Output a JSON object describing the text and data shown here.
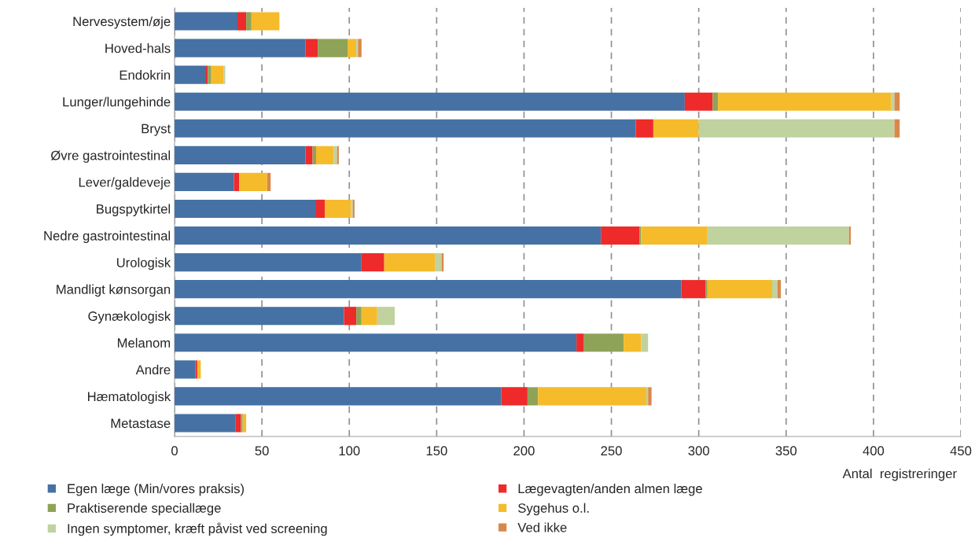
{
  "chart_data": {
    "type": "bar",
    "orientation": "horizontal",
    "stacked": true,
    "categories": [
      "Nervesystem/øje",
      "Hoved-hals",
      "Endokrin",
      "Lunger/lungehinde",
      "Bryst",
      "Øvre gastrointestinal",
      "Lever/galdeveje",
      "Bugspytkirtel",
      "Nedre gastrointestinal",
      "Urologisk",
      "Mandligt kønsorgan",
      "Gynækologisk",
      "Melanom",
      "Andre",
      "Hæmatologisk",
      "Metastase"
    ],
    "series": [
      {
        "name": "Egen læge (Min/vores praksis)",
        "color": "#4671a5",
        "values": [
          36,
          75,
          18,
          292,
          264,
          75,
          34,
          81,
          244,
          107,
          290,
          97,
          230,
          12,
          187,
          35
        ]
      },
      {
        "name": "Lægevagten/anden almen læge",
        "color": "#ee2a2a",
        "values": [
          5,
          7,
          1,
          16,
          10,
          4,
          3,
          5,
          22,
          13,
          14,
          7,
          4,
          1,
          15,
          3
        ]
      },
      {
        "name": "Praktiserende speciallæge",
        "color": "#8fa358",
        "values": [
          3,
          17,
          2,
          3,
          0,
          2,
          0,
          0,
          1,
          0,
          1,
          3,
          23,
          0,
          6,
          1
        ]
      },
      {
        "name": "Sygehus o.l.",
        "color": "#f5bb2b",
        "values": [
          16,
          5,
          7,
          99,
          26,
          10,
          16,
          15,
          38,
          29,
          37,
          9,
          10,
          2,
          62,
          2
        ]
      },
      {
        "name": "Ingen symptomer, kræft påvist ved screening",
        "color": "#c0d29e",
        "values": [
          0,
          1,
          1,
          2,
          112,
          2,
          0,
          1,
          81,
          4,
          3,
          10,
          4,
          0,
          1,
          0
        ]
      },
      {
        "name": "Ved ikke",
        "color": "#d9884a",
        "values": [
          0,
          2,
          0,
          3,
          3,
          1,
          2,
          1,
          1,
          1,
          2,
          0,
          0,
          0,
          2,
          0
        ]
      }
    ],
    "xlabel": "Antal  registreringer",
    "xlim": [
      0,
      450
    ],
    "xticks": [
      0,
      50,
      100,
      150,
      200,
      250,
      300,
      350,
      400,
      450
    ],
    "grid": "x",
    "legend": "bottom"
  }
}
